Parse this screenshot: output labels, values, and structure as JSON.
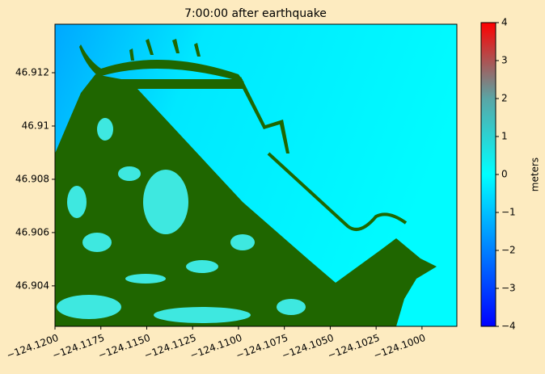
{
  "chart_data": {
    "type": "heatmap",
    "title": "7:00:00 after earthquake",
    "xlim": [
      -124.12,
      -124.0981
    ],
    "ylim": [
      46.90248,
      46.91382
    ],
    "xticks": [
      {
        "value": -124.12,
        "label": "−124.1200"
      },
      {
        "value": -124.1175,
        "label": "−124.1175"
      },
      {
        "value": -124.115,
        "label": "−124.1150"
      },
      {
        "value": -124.1125,
        "label": "−124.1125"
      },
      {
        "value": -124.11,
        "label": "−124.1100"
      },
      {
        "value": -124.1075,
        "label": "−124.1075"
      },
      {
        "value": -124.105,
        "label": "−124.1050"
      },
      {
        "value": -124.1025,
        "label": "−124.1025"
      },
      {
        "value": -124.1,
        "label": "−124.1000"
      }
    ],
    "yticks": [
      46.904,
      46.906,
      46.908,
      46.91,
      46.912
    ],
    "land_color": "#1f6600",
    "colorbar": {
      "label": "meters",
      "lim": [
        -4,
        4
      ],
      "ticks": [
        {
          "value": -4,
          "label": "−4"
        },
        {
          "value": -3,
          "label": "−3"
        },
        {
          "value": -2,
          "label": "−2"
        },
        {
          "value": -1,
          "label": "−1"
        },
        0,
        1,
        2,
        3,
        4
      ],
      "colors": [
        "#0000ff",
        "#0080ff",
        "#00ffff",
        "#5aa5a5",
        "#ff0000"
      ]
    }
  }
}
